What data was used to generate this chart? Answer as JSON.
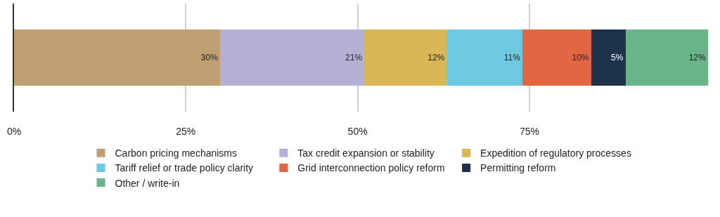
{
  "chart_data": {
    "type": "bar",
    "orientation": "horizontal",
    "stacked": true,
    "categories": [
      null
    ],
    "series": [
      {
        "name": "Carbon pricing mechanisms",
        "color": "#c0a072",
        "values": [
          30
        ],
        "value_labels": [
          "30%"
        ]
      },
      {
        "name": "Tax credit expansion or stability",
        "color": "#b6b0d6",
        "values": [
          21
        ],
        "value_labels": [
          "21%"
        ]
      },
      {
        "name": "Expedition of regulatory processes",
        "color": "#dab756",
        "values": [
          12
        ],
        "value_labels": [
          "12%"
        ]
      },
      {
        "name": "Tariff relief or trade policy clarity",
        "color": "#6dc8e1",
        "values": [
          11
        ],
        "value_labels": [
          "11%"
        ]
      },
      {
        "name": "Grid interconnection policy reform",
        "color": "#e16641",
        "values": [
          10
        ],
        "value_labels": [
          "10%"
        ]
      },
      {
        "name": "Permitting reform",
        "color": "#1d324b",
        "values": [
          5
        ],
        "value_labels": [
          "5%"
        ]
      },
      {
        "name": "Other / write-in",
        "color": "#69b489",
        "values": [
          12
        ],
        "value_labels": [
          "12%"
        ]
      }
    ],
    "xlim": [
      0,
      101
    ],
    "xticks": [
      {
        "value": 0,
        "label": "0%"
      },
      {
        "value": 25,
        "label": "25%"
      },
      {
        "value": 50,
        "label": "50%"
      },
      {
        "value": 75,
        "label": "75%"
      }
    ],
    "grid": "x",
    "legend": "bottom",
    "tick_labels": "x"
  }
}
